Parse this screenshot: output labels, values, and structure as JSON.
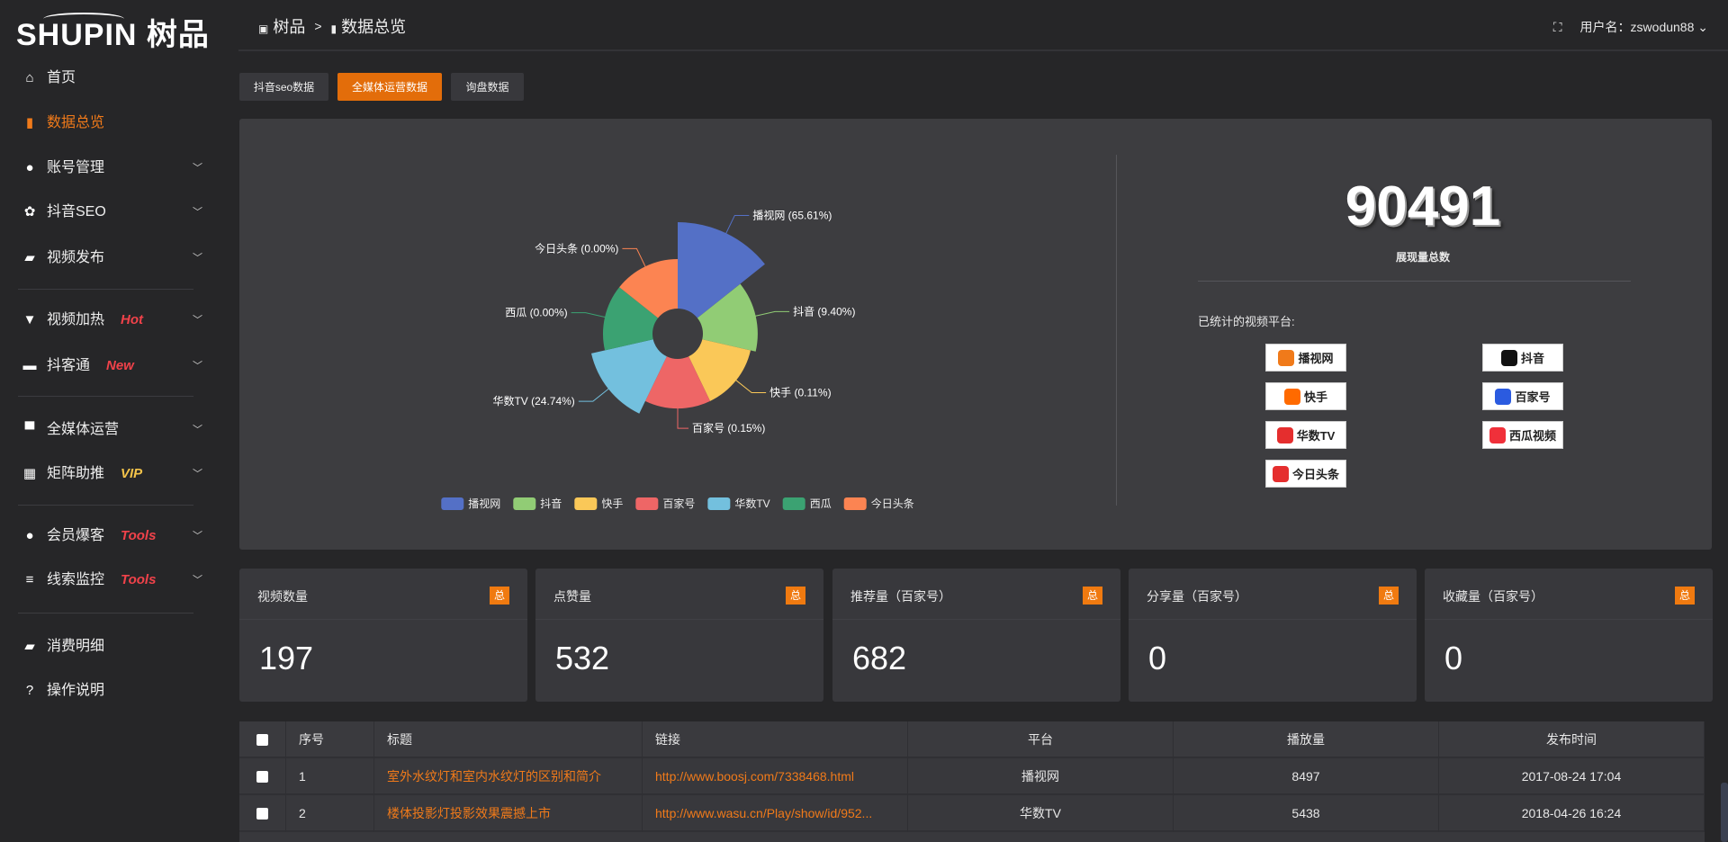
{
  "brand": {
    "logo_text": "SHUPIN",
    "logo_cn": "树品"
  },
  "header": {
    "crumb1": "树品",
    "sep": ">",
    "crumb2": "数据总览",
    "user_label": "用户名：zswodun88"
  },
  "sidebar": {
    "items": [
      {
        "label": "首页",
        "icon": "home-icon",
        "glyph": "⌂"
      },
      {
        "label": "数据总览",
        "icon": "bar-chart-icon",
        "glyph": "▮",
        "active": true
      },
      {
        "label": "账号管理",
        "icon": "user-icon",
        "glyph": "●",
        "chev": true
      },
      {
        "label": "抖音SEO",
        "icon": "gear-icon",
        "glyph": "✿",
        "chev": true
      },
      {
        "label": "视频发布",
        "icon": "camera-icon",
        "glyph": "▰",
        "chev": true
      },
      {
        "label": "视频加热",
        "icon": "monitor-icon",
        "glyph": "▼",
        "chev": true,
        "badge": "Hot"
      },
      {
        "label": "抖客通",
        "icon": "chat-icon",
        "glyph": "▬",
        "chev": true,
        "badge": "New"
      },
      {
        "label": "全媒体运营",
        "icon": "desktop-icon",
        "glyph": "▀",
        "chev": true
      },
      {
        "label": "矩阵助推",
        "icon": "grid-icon",
        "glyph": "▦",
        "chev": true,
        "badge": "VIP"
      },
      {
        "label": "会员爆客",
        "icon": "user-icon",
        "glyph": "●",
        "chev": true,
        "badge": "Tools"
      },
      {
        "label": "线索监控",
        "icon": "sliders-icon",
        "glyph": "≡",
        "chev": true,
        "badge": "Tools"
      },
      {
        "label": "消费明细",
        "icon": "wallet-icon",
        "glyph": "▰"
      },
      {
        "label": "操作说明",
        "icon": "help-icon",
        "glyph": "?"
      }
    ]
  },
  "tabs": [
    "抖音seo数据",
    "全媒体运营数据",
    "询盘数据"
  ],
  "active_tab": 1,
  "summary": {
    "total": "90491",
    "total_label": "展现量总数",
    "platforms_label": "已统计的视频平台:",
    "platform_logos": [
      "播视网",
      "抖音",
      "快手",
      "百家号",
      "华数TV",
      "西瓜视频",
      "今日头条"
    ]
  },
  "chart_data": {
    "type": "pie",
    "rose": true,
    "categories": [
      "播视网",
      "抖音",
      "快手",
      "百家号",
      "华数TV",
      "西瓜",
      "今日头条"
    ],
    "values": [
      65.61,
      9.4,
      0.11,
      0.15,
      24.74,
      0.0,
      0.0
    ],
    "labels": [
      "播视网 (65.61%)",
      "抖音 (9.40%)",
      "快手 (0.11%)",
      "百家号 (0.15%)",
      "华数TV (24.74%)",
      "西瓜 (0.00%)",
      "今日头条 (0.00%)"
    ],
    "colors": [
      "#5470c6",
      "#91cc75",
      "#fac858",
      "#ee6666",
      "#73c0de",
      "#3ba272",
      "#fc8452"
    ],
    "legend_position": "bottom"
  },
  "cards": [
    {
      "title": "视频数量",
      "badge": "总",
      "value": "197"
    },
    {
      "title": "点赞量",
      "badge": "总",
      "value": "532"
    },
    {
      "title": "推荐量（百家号）",
      "badge": "总",
      "value": "682"
    },
    {
      "title": "分享量（百家号）",
      "badge": "总",
      "value": "0"
    },
    {
      "title": "收藏量（百家号）",
      "badge": "总",
      "value": "0"
    }
  ],
  "table": {
    "headers": [
      "序号",
      "标题",
      "链接",
      "平台",
      "播放量",
      "发布时间"
    ],
    "rows": [
      [
        "1",
        "室外水纹灯和室内水纹灯的区别和简介",
        "http://www.boosj.com/7338468.html",
        "播视网",
        "8497",
        "2017-08-24 17:04"
      ],
      [
        "2",
        "楼体投影灯投影效果震撼上市",
        "http://www.wasu.cn/Play/show/id/952...",
        "华数TV",
        "5438",
        "2018-04-26 16:24"
      ]
    ]
  }
}
